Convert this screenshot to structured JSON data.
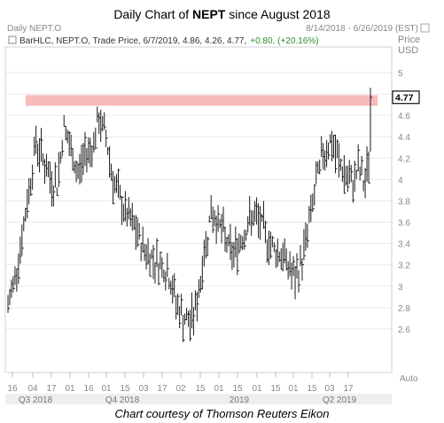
{
  "title": {
    "prefix": "Daily Chart of ",
    "ticker": "NEPT",
    "suffix": " since August 2018"
  },
  "caption": "Chart courtesy of Thomson Reuters Eikon",
  "panel": {
    "symbol_label": "Daily NEPT.O",
    "date_range": "8/14/2018 - 6/26/2019 (EST)",
    "price_label": "Price",
    "currency_label": "USD",
    "legend_series": "BarHLC, NEPT.O, Trade Price, 6/7/2019, 4.86, 4.26, 4.77,",
    "legend_change": "+0.80, (+20.16%)",
    "auto_label": "Auto",
    "last_price_tag": "4.77"
  },
  "colors": {
    "bars": "#1a1a1a",
    "highlight_band": "#f7b3b3",
    "gain": "#2e8b2e",
    "axis_text": "#888888",
    "grid": "#eaeaea"
  },
  "chart_data": {
    "type": "bar",
    "subtype": "ohlc-hlc",
    "title": "Daily Chart of NEPT since August 2018",
    "ylim": [
      2.4,
      5.0
    ],
    "yticks": [
      "5",
      "4.8",
      "4.6",
      "4.4",
      "4.2",
      "4",
      "3.8",
      "3.6",
      "3.4",
      "3.2",
      "3",
      "2.8",
      "2.6"
    ],
    "xticks_days": [
      "16",
      "04",
      "17",
      "01",
      "16",
      "01",
      "15",
      "03",
      "17",
      "02",
      "15",
      "01",
      "15",
      "01",
      "15",
      "01",
      "15",
      "03",
      "17"
    ],
    "xticks_quarters": [
      "Q3 2018",
      "Q4 2018",
      "2019",
      "Q2 2019"
    ],
    "highlight_band": [
      4.69,
      4.79
    ],
    "last_price": 4.77,
    "series": [
      {
        "name": "NEPT.O",
        "anchors": [
          {
            "x": 0,
            "close": 2.8
          },
          {
            "x": 4,
            "close": 3.1
          },
          {
            "x": 8,
            "close": 3.45
          },
          {
            "x": 12,
            "close": 3.9
          },
          {
            "x": 16,
            "close": 4.35
          },
          {
            "x": 20,
            "close": 4.2
          },
          {
            "x": 24,
            "close": 4.0
          },
          {
            "x": 28,
            "close": 3.95
          },
          {
            "x": 32,
            "close": 4.5
          },
          {
            "x": 36,
            "close": 4.25
          },
          {
            "x": 40,
            "close": 4.05
          },
          {
            "x": 44,
            "close": 4.25
          },
          {
            "x": 48,
            "close": 4.3
          },
          {
            "x": 52,
            "close": 4.55
          },
          {
            "x": 56,
            "close": 4.4
          },
          {
            "x": 60,
            "close": 4.0
          },
          {
            "x": 64,
            "close": 3.8
          },
          {
            "x": 68,
            "close": 3.65
          },
          {
            "x": 72,
            "close": 3.55
          },
          {
            "x": 76,
            "close": 3.4
          },
          {
            "x": 80,
            "close": 3.3
          },
          {
            "x": 84,
            "close": 3.25
          },
          {
            "x": 88,
            "close": 3.2
          },
          {
            "x": 92,
            "close": 3.1
          },
          {
            "x": 96,
            "close": 2.85
          },
          {
            "x": 100,
            "close": 2.7
          },
          {
            "x": 104,
            "close": 2.65
          },
          {
            "x": 108,
            "close": 2.85
          },
          {
            "x": 112,
            "close": 3.3
          },
          {
            "x": 116,
            "close": 3.7
          },
          {
            "x": 120,
            "close": 3.6
          },
          {
            "x": 124,
            "close": 3.45
          },
          {
            "x": 128,
            "close": 3.3
          },
          {
            "x": 132,
            "close": 3.4
          },
          {
            "x": 136,
            "close": 3.55
          },
          {
            "x": 140,
            "close": 3.65
          },
          {
            "x": 144,
            "close": 3.6
          },
          {
            "x": 148,
            "close": 3.45
          },
          {
            "x": 152,
            "close": 3.35
          },
          {
            "x": 156,
            "close": 3.3
          },
          {
            "x": 160,
            "close": 3.2
          },
          {
            "x": 164,
            "close": 3.05
          },
          {
            "x": 168,
            "close": 3.25
          },
          {
            "x": 172,
            "close": 3.6
          },
          {
            "x": 176,
            "close": 3.95
          },
          {
            "x": 180,
            "close": 4.25
          },
          {
            "x": 184,
            "close": 4.35
          },
          {
            "x": 188,
            "close": 4.2
          },
          {
            "x": 192,
            "close": 4.05
          },
          {
            "x": 196,
            "close": 3.95
          },
          {
            "x": 200,
            "close": 4.1
          },
          {
            "x": 204,
            "close": 3.95
          },
          {
            "x": 206,
            "close": 4.2
          },
          {
            "x": 207,
            "close": 4.77
          }
        ]
      }
    ]
  }
}
